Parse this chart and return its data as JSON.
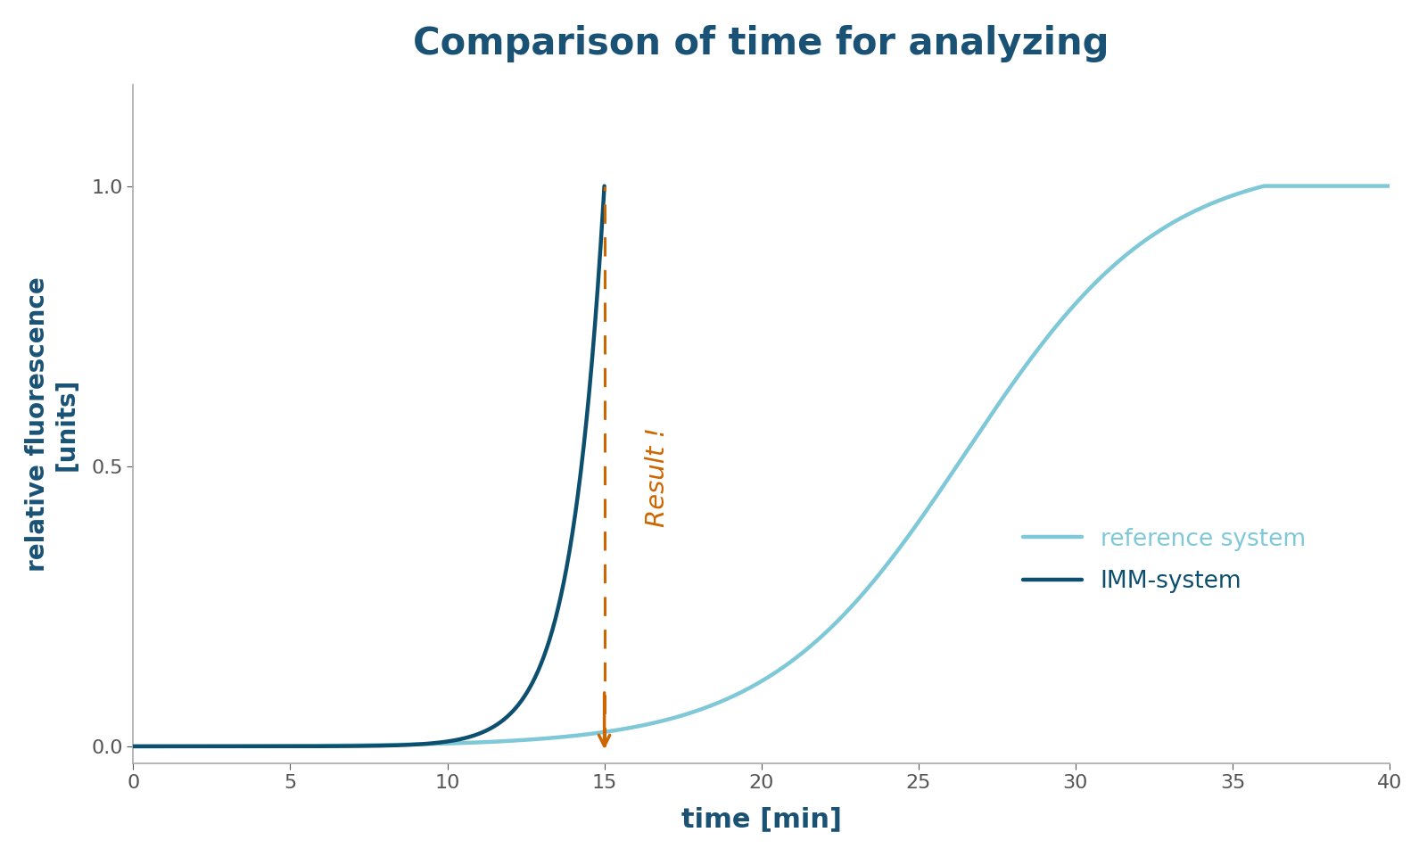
{
  "title": "Comparison of time for analyzing",
  "title_color": "#1a5276",
  "title_fontsize": 30,
  "xlabel": "time [min]",
  "ylabel": "relative fluorescence\n[units]",
  "xlabel_fontsize": 22,
  "ylabel_fontsize": 20,
  "xlim": [
    0,
    40
  ],
  "ylim": [
    -0.03,
    1.18
  ],
  "xticks": [
    0,
    5,
    10,
    15,
    20,
    25,
    30,
    35,
    40
  ],
  "yticks": [
    0.0,
    0.5,
    1.0
  ],
  "imm_color": "#0d4f6e",
  "ref_color": "#7fc8d8",
  "imm_linewidth": 3.2,
  "ref_linewidth": 3.2,
  "annotation_color": "#cc6600",
  "annotation_text": "Result !",
  "annotation_fontsize": 21,
  "legend_ref_label": "reference system",
  "legend_imm_label": "IMM-system",
  "legend_fontsize": 19,
  "background_color": "#ffffff",
  "ref_midpoint": 26.5,
  "ref_steepness": 0.32
}
